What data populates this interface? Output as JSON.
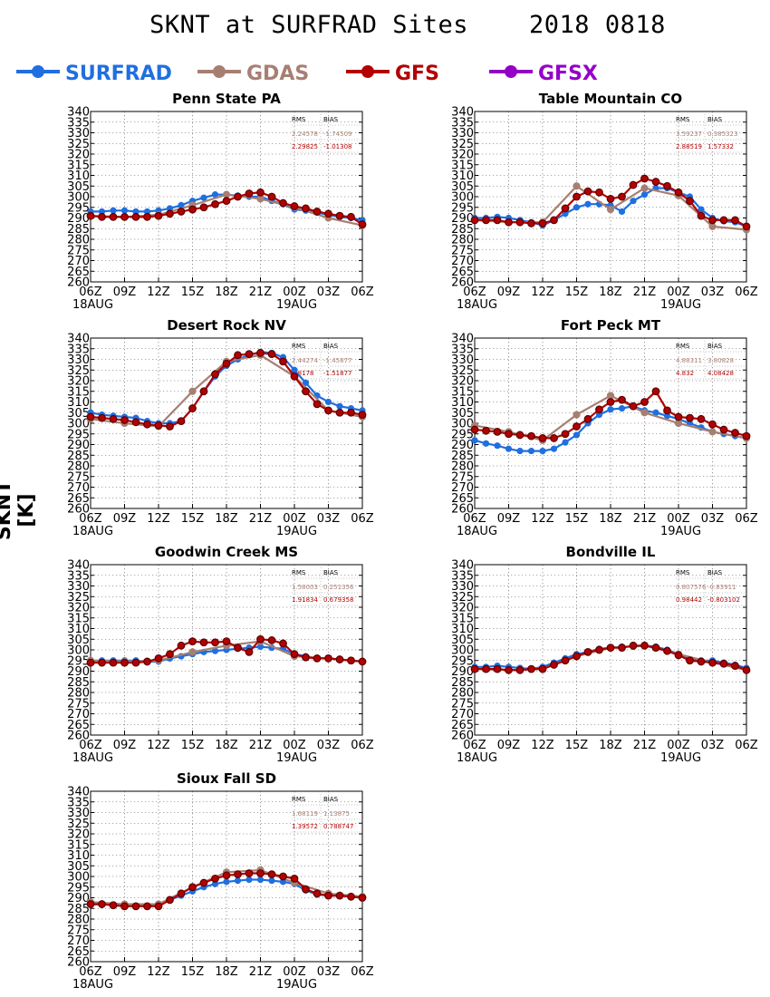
{
  "title": "SKNT at SURFRAD Sites    2018 0818",
  "ylabel": "SKNT [K]",
  "colors": {
    "SURFRAD": "#1f6fe0",
    "GDAS": "#a77f72",
    "GFS": "#b30000",
    "GFSX": "#9400c8"
  },
  "legend": [
    {
      "name": "SURFRAD",
      "color": "#1f6fe0"
    },
    {
      "name": "GDAS",
      "color": "#a77f72"
    },
    {
      "name": "GFS",
      "color": "#b30000"
    },
    {
      "name": "GFSX",
      "color": "#9400c8"
    }
  ],
  "x_tick_labels": [
    "06Z",
    "09Z",
    "12Z",
    "15Z",
    "18Z",
    "21Z",
    "00Z",
    "03Z",
    "06Z"
  ],
  "x_date_labels": [
    "18AUG",
    "19AUG"
  ],
  "y_ticks": [
    260,
    265,
    270,
    275,
    280,
    285,
    290,
    295,
    300,
    305,
    310,
    315,
    320,
    325,
    330,
    335,
    340
  ],
  "stats_header": [
    "RMS",
    "BIAS"
  ],
  "chart_data": [
    {
      "type": "line",
      "title": "Penn State PA",
      "ylim": [
        260,
        340
      ],
      "xlim": [
        0,
        24
      ],
      "stats": [
        [
          "2.24578",
          "-1.74509"
        ],
        [
          "2.29825",
          "-1.01308"
        ]
      ],
      "series": [
        {
          "name": "SURFRAD",
          "x": [
            0,
            1,
            2,
            3,
            4,
            5,
            6,
            7,
            8,
            9,
            10,
            11,
            12,
            13,
            14,
            15,
            16,
            17,
            18,
            19,
            20,
            21,
            22,
            23,
            24
          ],
          "values": [
            293,
            293,
            293.5,
            293.5,
            293,
            293,
            293.5,
            294.5,
            296,
            298,
            299.5,
            301,
            301,
            300.5,
            300,
            300,
            298,
            296.5,
            294,
            293.5,
            292.5,
            291.5,
            290.5,
            290,
            289
          ]
        },
        {
          "name": "GDAS",
          "x": [
            0,
            3,
            6,
            9,
            12,
            15,
            18,
            21,
            24
          ],
          "values": [
            291,
            290.5,
            291.5,
            296,
            301,
            299,
            295,
            290,
            286.5
          ]
        },
        {
          "name": "GFS",
          "x": [
            0,
            1,
            2,
            3,
            4,
            5,
            6,
            7,
            8,
            9,
            10,
            11,
            12,
            13,
            14,
            15,
            16,
            17,
            18,
            19,
            20,
            21,
            22,
            23,
            24
          ],
          "values": [
            291,
            290.5,
            290.5,
            290.5,
            290.5,
            290.5,
            291,
            292,
            293,
            294,
            295,
            296.5,
            298,
            300,
            301.5,
            302,
            300,
            297,
            295.5,
            294.5,
            293,
            292,
            291,
            290.5,
            287
          ]
        }
      ]
    },
    {
      "type": "line",
      "title": "Table Mountain CO",
      "ylim": [
        260,
        340
      ],
      "xlim": [
        0,
        24
      ],
      "stats": [
        [
          "3.59237",
          "0.385323"
        ],
        [
          "2.88519",
          "1.57332"
        ]
      ],
      "series": [
        {
          "name": "SURFRAD",
          "x": [
            0,
            1,
            2,
            3,
            4,
            5,
            6,
            7,
            8,
            9,
            10,
            11,
            12,
            13,
            14,
            15,
            16,
            17,
            18,
            19,
            20,
            21,
            22,
            23,
            24
          ],
          "values": [
            290,
            290,
            290.5,
            290,
            289,
            288,
            286.5,
            289,
            292,
            295,
            296.5,
            296.5,
            296,
            293,
            298,
            301,
            304,
            304,
            302,
            300,
            294,
            290,
            288.5,
            288,
            286
          ]
        },
        {
          "name": "GDAS",
          "x": [
            0,
            3,
            6,
            9,
            12,
            15,
            18,
            21,
            24
          ],
          "values": [
            289,
            288,
            288,
            305,
            294,
            304,
            300.5,
            286,
            284.5
          ]
        },
        {
          "name": "GFS",
          "x": [
            0,
            1,
            2,
            3,
            4,
            5,
            6,
            7,
            8,
            9,
            10,
            11,
            12,
            13,
            14,
            15,
            16,
            17,
            18,
            19,
            20,
            21,
            22,
            23,
            24
          ],
          "values": [
            289,
            289,
            289,
            288,
            288,
            287.5,
            287.5,
            289,
            294.5,
            300,
            302.5,
            302,
            299,
            300,
            305.5,
            308.5,
            307,
            305,
            302,
            298,
            291,
            289,
            289,
            289,
            286
          ]
        }
      ]
    },
    {
      "type": "line",
      "title": "Desert Rock NV",
      "ylim": [
        260,
        340
      ],
      "xlim": [
        0,
        24
      ],
      "stats": [
        [
          "2.44274",
          "-1.45877"
        ],
        [
          "1.8178",
          "-1.51877"
        ]
      ],
      "series": [
        {
          "name": "SURFRAD",
          "x": [
            0,
            1,
            2,
            3,
            4,
            5,
            6,
            7,
            8,
            9,
            10,
            11,
            12,
            13,
            14,
            15,
            16,
            17,
            18,
            19,
            20,
            21,
            22,
            23,
            24
          ],
          "values": [
            305,
            304,
            303.5,
            303,
            302.5,
            301,
            300,
            300,
            301,
            307,
            315,
            322,
            327,
            330,
            332,
            333.5,
            333,
            331,
            325,
            319,
            313,
            310,
            308,
            307,
            306
          ]
        },
        {
          "name": "GDAS",
          "x": [
            0,
            3,
            6,
            9,
            12,
            15,
            18,
            21,
            24
          ],
          "values": [
            302,
            300,
            298.5,
            315,
            329,
            332,
            322,
            306,
            303
          ]
        },
        {
          "name": "GFS",
          "x": [
            0,
            1,
            2,
            3,
            4,
            5,
            6,
            7,
            8,
            9,
            10,
            11,
            12,
            13,
            14,
            15,
            16,
            17,
            18,
            19,
            20,
            21,
            22,
            23,
            24
          ],
          "values": [
            303,
            302.5,
            302,
            301.5,
            300.5,
            299.5,
            299,
            298.5,
            301,
            307,
            315,
            323,
            328,
            332,
            332.5,
            333,
            332.5,
            329,
            322,
            315,
            309,
            306,
            305,
            305,
            304
          ]
        }
      ]
    },
    {
      "type": "line",
      "title": "Fort Peck MT",
      "ylim": [
        260,
        340
      ],
      "xlim": [
        0,
        24
      ],
      "stats": [
        [
          "4.88311",
          "3.80828"
        ],
        [
          "4.832",
          "4.08428"
        ]
      ],
      "series": [
        {
          "name": "SURFRAD",
          "x": [
            0,
            1,
            2,
            3,
            4,
            5,
            6,
            7,
            8,
            9,
            10,
            11,
            12,
            13,
            14,
            15,
            16,
            17,
            18,
            19,
            20,
            21,
            22,
            23,
            24
          ],
          "values": [
            292,
            290.5,
            289.5,
            288,
            287,
            287,
            287,
            288,
            291,
            294.5,
            300,
            304,
            306.5,
            307,
            308,
            306,
            305,
            303.5,
            302,
            300,
            298,
            296,
            295,
            294,
            293
          ]
        },
        {
          "name": "GDAS",
          "x": [
            0,
            3,
            6,
            9,
            12,
            15,
            18,
            21,
            24
          ],
          "values": [
            299,
            296,
            292,
            304,
            313,
            305,
            300,
            296,
            293
          ]
        },
        {
          "name": "GFS",
          "x": [
            0,
            1,
            2,
            3,
            4,
            5,
            6,
            7,
            8,
            9,
            10,
            11,
            12,
            13,
            14,
            15,
            16,
            17,
            18,
            19,
            20,
            21,
            22,
            23,
            24
          ],
          "values": [
            297,
            296.5,
            296,
            295,
            294.5,
            294,
            293,
            293,
            295,
            298.5,
            302,
            306.5,
            310,
            311,
            308,
            310,
            315,
            306,
            303,
            302.5,
            302,
            299.5,
            297,
            295.5,
            294
          ]
        }
      ]
    },
    {
      "type": "line",
      "title": "Goodwin Creek MS",
      "ylim": [
        260,
        340
      ],
      "xlim": [
        0,
        24
      ],
      "stats": [
        [
          "1.58003",
          "0.251356"
        ],
        [
          "1.91834",
          "0.679358"
        ]
      ],
      "series": [
        {
          "name": "SURFRAD",
          "x": [
            0,
            1,
            2,
            3,
            4,
            5,
            6,
            7,
            8,
            9,
            10,
            11,
            12,
            13,
            14,
            15,
            16,
            17,
            18,
            19,
            20,
            21,
            22,
            23,
            24
          ],
          "values": [
            295,
            295,
            295,
            295,
            295,
            294.5,
            294.5,
            296,
            297,
            298,
            299,
            299.5,
            300,
            300.5,
            301,
            301.5,
            301,
            300.5,
            298,
            297,
            296,
            296,
            295.5,
            295,
            294.5
          ]
        },
        {
          "name": "GDAS",
          "x": [
            0,
            3,
            6,
            9,
            12,
            15,
            18,
            21,
            24
          ],
          "values": [
            295,
            294.5,
            295,
            299,
            302,
            304,
            297,
            296,
            294.5
          ]
        },
        {
          "name": "GFS",
          "x": [
            0,
            1,
            2,
            3,
            4,
            5,
            6,
            7,
            8,
            9,
            10,
            11,
            12,
            13,
            14,
            15,
            16,
            17,
            18,
            19,
            20,
            21,
            22,
            23,
            24
          ],
          "values": [
            294,
            294,
            294,
            294,
            294,
            294.5,
            296,
            298,
            302,
            304,
            303.5,
            303.5,
            304,
            301,
            299,
            305,
            304.5,
            303,
            298,
            296.5,
            296,
            296,
            295.5,
            295,
            294.5
          ]
        }
      ]
    },
    {
      "type": "line",
      "title": "Bondville IL",
      "ylim": [
        260,
        340
      ],
      "xlim": [
        0,
        24
      ],
      "stats": [
        [
          "0.807576",
          "-0.83911"
        ],
        [
          "0.98442",
          "-0.803102"
        ]
      ],
      "series": [
        {
          "name": "SURFRAD",
          "x": [
            0,
            1,
            2,
            3,
            4,
            5,
            6,
            7,
            8,
            9,
            10,
            11,
            12,
            13,
            14,
            15,
            16,
            17,
            18,
            19,
            20,
            21,
            22,
            23,
            24
          ],
          "values": [
            292,
            292,
            292.5,
            292,
            291.5,
            291,
            292,
            294,
            296,
            298,
            299,
            300.5,
            301,
            301.5,
            301.5,
            302,
            301.5,
            300,
            298,
            295.5,
            295,
            295,
            294,
            293,
            291.5
          ]
        },
        {
          "name": "GDAS",
          "x": [
            0,
            3,
            6,
            9,
            12,
            15,
            18,
            21,
            24
          ],
          "values": [
            291,
            290.5,
            291,
            297,
            301,
            302,
            298,
            294,
            290.5
          ]
        },
        {
          "name": "GFS",
          "x": [
            0,
            1,
            2,
            3,
            4,
            5,
            6,
            7,
            8,
            9,
            10,
            11,
            12,
            13,
            14,
            15,
            16,
            17,
            18,
            19,
            20,
            21,
            22,
            23,
            24
          ],
          "values": [
            291,
            291,
            291,
            290.5,
            290.5,
            291,
            291,
            293,
            295,
            297,
            299,
            300,
            301,
            301,
            302,
            302,
            301,
            299.5,
            297.5,
            295,
            294.5,
            294,
            293.5,
            292.5,
            290.5
          ]
        }
      ]
    },
    {
      "type": "line",
      "title": "Sioux Fall SD",
      "ylim": [
        260,
        340
      ],
      "xlim": [
        0,
        24
      ],
      "stats": [
        [
          "1.68119",
          "1.13875"
        ],
        [
          "1.39572",
          "0.788747"
        ]
      ],
      "series": [
        {
          "name": "SURFRAD",
          "x": [
            0,
            1,
            2,
            3,
            4,
            5,
            6,
            7,
            8,
            9,
            10,
            11,
            12,
            13,
            14,
            15,
            16,
            17,
            18,
            19,
            20,
            21,
            22,
            23,
            24
          ],
          "values": [
            287,
            287,
            286.5,
            286,
            286,
            286,
            287,
            289,
            291,
            293,
            295,
            296.5,
            297.5,
            298,
            298.5,
            298.5,
            298,
            297.5,
            296.5,
            293.5,
            291.5,
            291,
            291,
            290.5,
            290
          ]
        },
        {
          "name": "GDAS",
          "x": [
            0,
            3,
            6,
            9,
            12,
            15,
            18,
            21,
            24
          ],
          "values": [
            288,
            287,
            287,
            295,
            302,
            303,
            297,
            292,
            290.5
          ]
        },
        {
          "name": "GFS",
          "x": [
            0,
            1,
            2,
            3,
            4,
            5,
            6,
            7,
            8,
            9,
            10,
            11,
            12,
            13,
            14,
            15,
            16,
            17,
            18,
            19,
            20,
            21,
            22,
            23,
            24
          ],
          "values": [
            287,
            287,
            286.5,
            286,
            286,
            286,
            286,
            289,
            292,
            295,
            297,
            299,
            300.5,
            301,
            301.5,
            301.5,
            301,
            300,
            299,
            294,
            292,
            291,
            291,
            290.5,
            290
          ]
        }
      ]
    }
  ]
}
